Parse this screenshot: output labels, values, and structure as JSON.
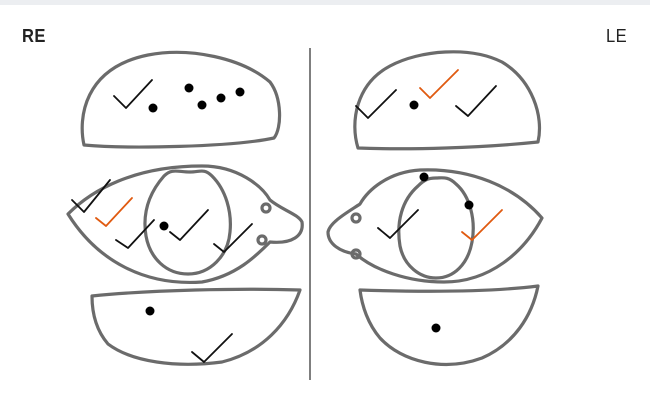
{
  "labels": {
    "right_eye": "RE",
    "left_eye": "LE"
  },
  "colors": {
    "outline": "#6b6b6b",
    "tick_black": "#111111",
    "tick_orange": "#e05a10",
    "dot": "#000000",
    "divider": "#555555"
  },
  "marks": {
    "right_eye": {
      "upper_lid": {
        "dots": 5,
        "black_ticks": 1,
        "orange_ticks": 0
      },
      "eyeball": {
        "dots": 1,
        "black_ticks": 4,
        "orange_ticks": 1
      },
      "lower_lid": {
        "dots": 1,
        "black_ticks": 1,
        "orange_ticks": 0
      }
    },
    "left_eye": {
      "upper_lid": {
        "dots": 1,
        "black_ticks": 2,
        "orange_ticks": 1
      },
      "eyeball": {
        "dots": 2,
        "black_ticks": 1,
        "orange_ticks": 1
      },
      "lower_lid": {
        "dots": 1,
        "black_ticks": 0,
        "orange_ticks": 0
      }
    }
  }
}
